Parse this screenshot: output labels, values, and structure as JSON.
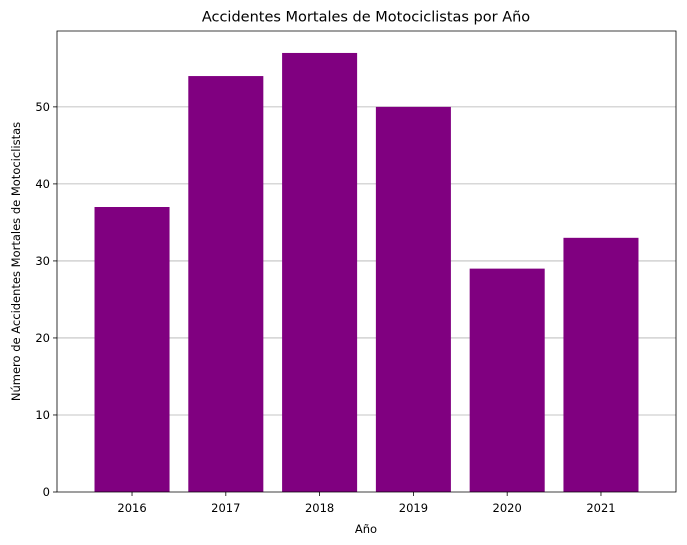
{
  "chart_data": {
    "type": "bar",
    "title": "Accidentes Mortales de Motociclistas por Año",
    "xlabel": "Año",
    "ylabel": "Número de Accidentes Mortales de Motociclistas",
    "categories": [
      "2016",
      "2017",
      "2018",
      "2019",
      "2020",
      "2021"
    ],
    "values": [
      37,
      54,
      57,
      50,
      29,
      33
    ],
    "ylim": [
      0,
      59.85
    ],
    "yticks": [
      0,
      10,
      20,
      30,
      40,
      50
    ],
    "bar_color": "#800080",
    "grid": "y-axis on",
    "legend": "none"
  }
}
